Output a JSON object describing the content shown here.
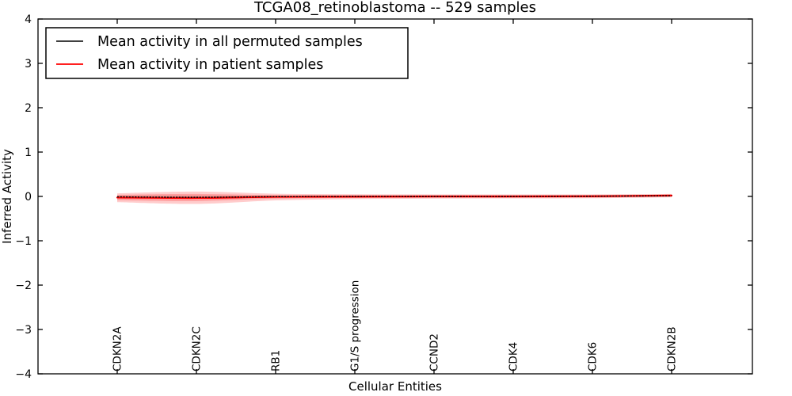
{
  "figure": {
    "background": "#ffffff",
    "accent_red": "#ff0000",
    "line_black": "#000000"
  },
  "chart_data": {
    "type": "line",
    "title": "TCGA08_retinoblastoma -- 529 samples",
    "xlabel": "Cellular Entities",
    "ylabel": "Inferred Activity",
    "ylim": [
      -4,
      4
    ],
    "yticks": [
      4,
      3,
      2,
      1,
      0,
      -1,
      -2,
      -3,
      -4
    ],
    "grid": false,
    "legend_position": "upper left",
    "categories": [
      "CDKN2A",
      "CDKN2C",
      "RB1",
      "G1/S progression",
      "CCND2",
      "CDK4",
      "CDK6",
      "CDKN2B"
    ],
    "series": [
      {
        "name": "Mean activity in all permuted samples",
        "color": "#000000",
        "linestyle": "dashed",
        "values": [
          -0.01,
          -0.02,
          -0.005,
          0.0,
          0.0,
          0.0,
          0.005,
          0.015
        ]
      },
      {
        "name": "Mean activity in patient samples",
        "color": "#ff0000",
        "linestyle": "solid",
        "values": [
          -0.025,
          -0.035,
          -0.01,
          -0.005,
          0.0,
          0.0,
          0.005,
          0.02
        ]
      }
    ],
    "bands": [
      {
        "name": "patient-std-outer",
        "color": "#ff0000",
        "opacity": 0.2,
        "upper": [
          0.07,
          0.11,
          0.06,
          0.05,
          0.045,
          0.045,
          0.045,
          0.055
        ],
        "lower": [
          -0.13,
          -0.17,
          -0.09,
          -0.06,
          -0.05,
          -0.045,
          -0.04,
          -0.02
        ]
      },
      {
        "name": "patient-std-inner",
        "color": "#ff0000",
        "opacity": 0.22,
        "upper": [
          0.035,
          0.055,
          0.03,
          0.025,
          0.025,
          0.025,
          0.025,
          0.03
        ],
        "lower": [
          -0.085,
          -0.105,
          -0.05,
          -0.035,
          -0.03,
          -0.03,
          -0.025,
          -0.005
        ]
      },
      {
        "name": "permuted-std",
        "color": "#000000",
        "opacity": 0.1,
        "upper": [
          0.02,
          0.02,
          0.015,
          0.015,
          0.015,
          0.015,
          0.015,
          0.02
        ],
        "lower": [
          -0.04,
          -0.05,
          -0.03,
          -0.02,
          -0.02,
          -0.02,
          -0.015,
          -0.005
        ]
      }
    ]
  }
}
